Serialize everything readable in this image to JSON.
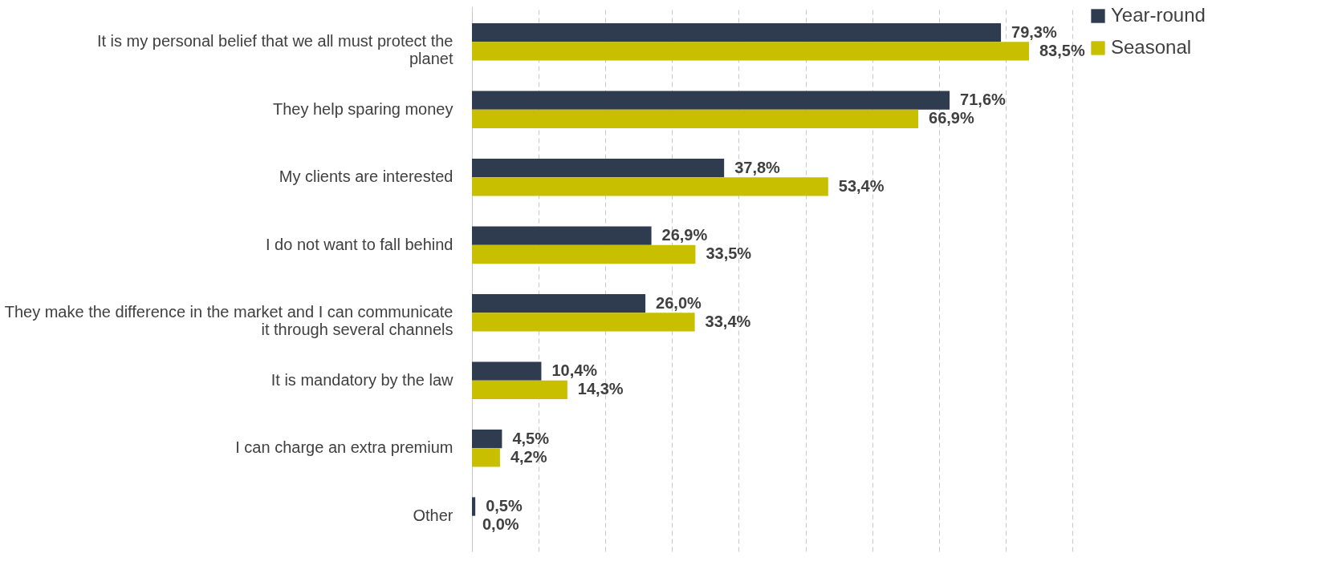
{
  "chart_data": {
    "type": "bar",
    "orientation": "horizontal",
    "categories": [
      "It is my personal belief that we all must protect the planet",
      "They help sparing money",
      "My clients are interested",
      "I do not want to fall behind",
      "They make the difference in the market and I can communicate it through several channels",
      "It is mandatory by the law",
      "I can charge an extra premium",
      "Other"
    ],
    "series": [
      {
        "name": "Year-round",
        "color": "#2f3b4e",
        "values": [
          79.3,
          71.6,
          37.8,
          26.9,
          26.0,
          10.4,
          4.5,
          0.5
        ],
        "value_labels": [
          "79,3%",
          "71,6%",
          "37,8%",
          "26,9%",
          "26,0%",
          "10,4%",
          "4,5%",
          "0,5%"
        ]
      },
      {
        "name": "Seasonal",
        "color": "#c8bf00",
        "values": [
          83.5,
          66.9,
          53.4,
          33.5,
          33.4,
          14.3,
          4.2,
          0.0
        ],
        "value_labels": [
          "83,5%",
          "66,9%",
          "53,4%",
          "33,5%",
          "33,4%",
          "14,3%",
          "4,2%",
          "0,0%"
        ]
      }
    ],
    "xlim": [
      0,
      90
    ],
    "xticks": [
      {
        "value": 0,
        "label": null
      },
      {
        "value": 10,
        "label": null
      },
      {
        "value": 20,
        "label": null
      },
      {
        "value": 30,
        "label": null
      },
      {
        "value": 40,
        "label": null
      },
      {
        "value": 50,
        "label": null
      },
      {
        "value": 60,
        "label": null
      },
      {
        "value": 70,
        "label": null
      },
      {
        "value": 80,
        "label": null
      },
      {
        "value": 90,
        "label": null
      }
    ],
    "grid": "x",
    "legend": "right"
  }
}
